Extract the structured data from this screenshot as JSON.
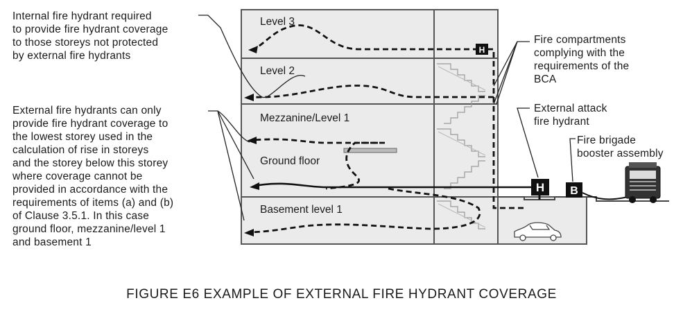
{
  "notes": {
    "internal_hydrant": "Internal fire hydrant required\nto provide fire hydrant coverage\nto those storeys not protected\nby external fire hydrants",
    "external_hydrant": "External fire hydrants can only\nprovide fire hydrant coverage to\nthe lowest storey used in the\ncalculation of rise in storeys\nand the storey below this storey\nwhere coverage cannot be\nprovided in accordance with the\nrequirements of items (a) and (b)\nof Clause 3.5.1. In this case\nground floor, mezzanine/level 1\nand basement 1",
    "fire_compartments": "Fire compartments\ncomplying with the\nrequirements of the\nBCA",
    "external_attack": "External attack\nfire hydrant",
    "booster": "Fire brigade\nbooster assembly"
  },
  "levels": {
    "level3": "Level 3",
    "level2": "Level 2",
    "mezzanine": "Mezzanine/Level 1",
    "ground": "Ground floor",
    "basement": "Basement level 1"
  },
  "markers": {
    "internal_hydrant_letter": "H",
    "external_hydrant_letter": "H",
    "booster_letter": "B"
  },
  "caption": "FIGURE  E6   EXAMPLE OF EXTERNAL FIRE HYDRANT COVERAGE"
}
